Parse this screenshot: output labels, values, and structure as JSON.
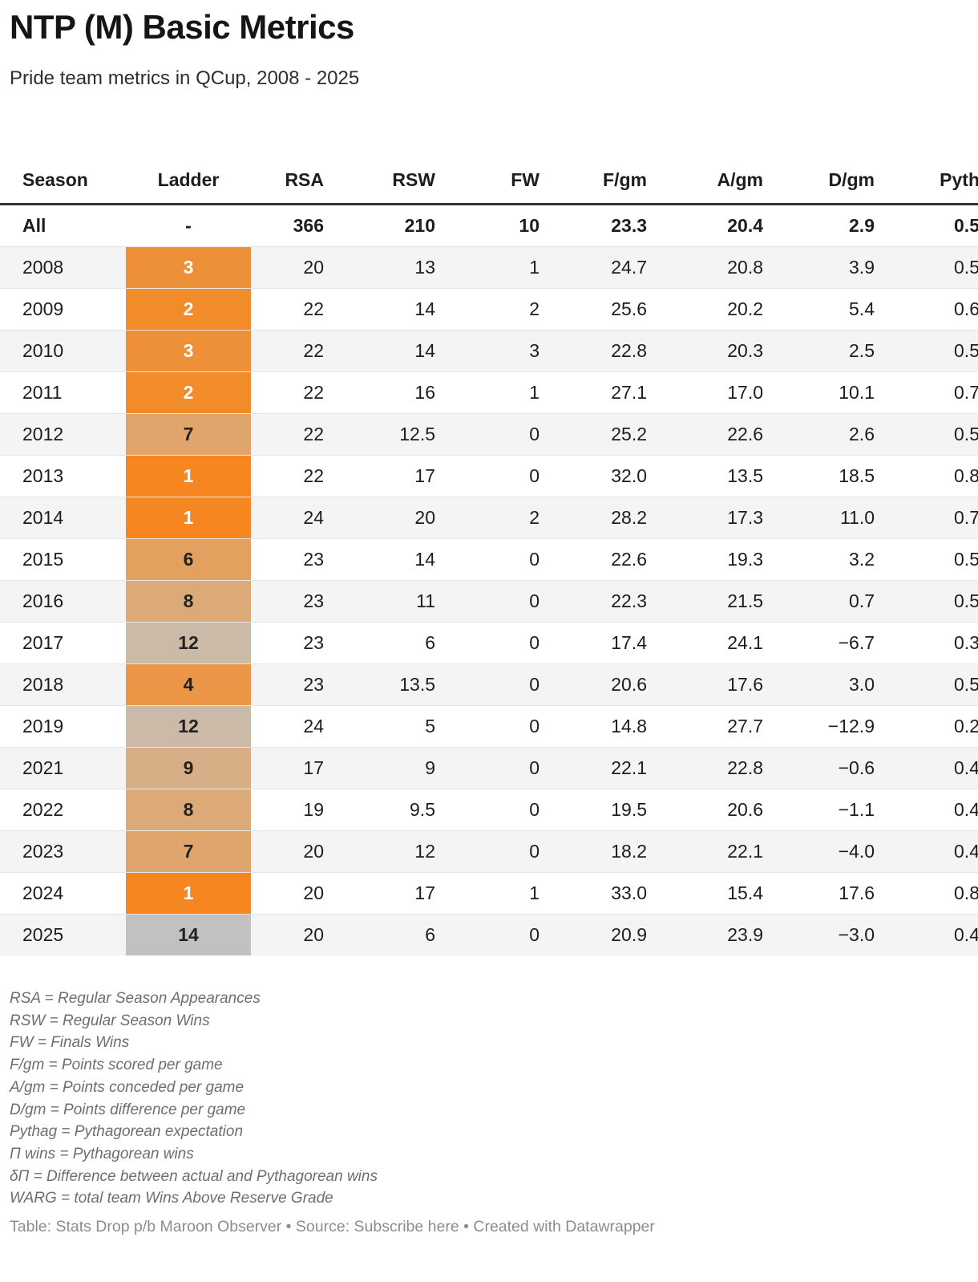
{
  "header": {
    "title": "NTP (M) Basic Metrics",
    "subtitle": "Pride team metrics in QCup, 2008 - 2025"
  },
  "table": {
    "columns": [
      {
        "label": "Season"
      },
      {
        "label": "Ladder"
      },
      {
        "label": "RSA"
      },
      {
        "label": "RSW"
      },
      {
        "label": "FW"
      },
      {
        "label": "F/gm"
      },
      {
        "label": "A/gm"
      },
      {
        "label": "D/gm"
      },
      {
        "label": "Pyth"
      }
    ],
    "total_row": {
      "season": "All",
      "ladder": "-",
      "values": [
        "366",
        "210",
        "10",
        "23.3",
        "20.4",
        "2.9",
        "0.5"
      ]
    },
    "rows": [
      {
        "season": "2008",
        "ladder": "3",
        "ladder_bg": "#ee9038",
        "ladder_text": "#ffffff",
        "values": [
          "20",
          "13",
          "1",
          "24.7",
          "20.8",
          "3.9",
          "0.5"
        ]
      },
      {
        "season": "2009",
        "ladder": "2",
        "ladder_bg": "#f28b2a",
        "ladder_text": "#ffffff",
        "values": [
          "22",
          "14",
          "2",
          "25.6",
          "20.2",
          "5.4",
          "0.6"
        ]
      },
      {
        "season": "2010",
        "ladder": "3",
        "ladder_bg": "#ee9038",
        "ladder_text": "#ffffff",
        "values": [
          "22",
          "14",
          "3",
          "22.8",
          "20.3",
          "2.5",
          "0.5"
        ]
      },
      {
        "season": "2011",
        "ladder": "2",
        "ladder_bg": "#f28b2a",
        "ladder_text": "#ffffff",
        "values": [
          "22",
          "16",
          "1",
          "27.1",
          "17.0",
          "10.1",
          "0.7"
        ]
      },
      {
        "season": "2012",
        "ladder": "7",
        "ladder_bg": "#e0a56c",
        "ladder_text": "#222222",
        "values": [
          "22",
          "12.5",
          "0",
          "25.2",
          "22.6",
          "2.6",
          "0.5"
        ]
      },
      {
        "season": "2013",
        "ladder": "1",
        "ladder_bg": "#f6861f",
        "ladder_text": "#ffffff",
        "values": [
          "22",
          "17",
          "0",
          "32.0",
          "13.5",
          "18.5",
          "0.8"
        ]
      },
      {
        "season": "2014",
        "ladder": "1",
        "ladder_bg": "#f6861f",
        "ladder_text": "#ffffff",
        "values": [
          "24",
          "20",
          "2",
          "28.2",
          "17.3",
          "11.0",
          "0.7"
        ]
      },
      {
        "season": "2015",
        "ladder": "6",
        "ladder_bg": "#e4a05f",
        "ladder_text": "#222222",
        "values": [
          "23",
          "14",
          "0",
          "22.6",
          "19.3",
          "3.2",
          "0.5"
        ]
      },
      {
        "season": "2016",
        "ladder": "8",
        "ladder_bg": "#dcaa79",
        "ladder_text": "#222222",
        "values": [
          "23",
          "11",
          "0",
          "22.3",
          "21.5",
          "0.7",
          "0.5"
        ]
      },
      {
        "season": "2017",
        "ladder": "12",
        "ladder_bg": "#ccbaa9",
        "ladder_text": "#222222",
        "values": [
          "23",
          "6",
          "0",
          "17.4",
          "24.1",
          "−6.7",
          "0.3"
        ]
      },
      {
        "season": "2018",
        "ladder": "4",
        "ladder_bg": "#eb9646",
        "ladder_text": "#222222",
        "values": [
          "23",
          "13.5",
          "0",
          "20.6",
          "17.6",
          "3.0",
          "0.5"
        ]
      },
      {
        "season": "2019",
        "ladder": "12",
        "ladder_bg": "#ccbaa9",
        "ladder_text": "#222222",
        "values": [
          "24",
          "5",
          "0",
          "14.8",
          "27.7",
          "−12.9",
          "0.2"
        ]
      },
      {
        "season": "2021",
        "ladder": "9",
        "ladder_bg": "#d7ae86",
        "ladder_text": "#222222",
        "values": [
          "17",
          "9",
          "0",
          "22.1",
          "22.8",
          "−0.6",
          "0.4"
        ]
      },
      {
        "season": "2022",
        "ladder": "8",
        "ladder_bg": "#dcaa79",
        "ladder_text": "#222222",
        "values": [
          "19",
          "9.5",
          "0",
          "19.5",
          "20.6",
          "−1.1",
          "0.4"
        ]
      },
      {
        "season": "2023",
        "ladder": "7",
        "ladder_bg": "#e0a56c",
        "ladder_text": "#222222",
        "values": [
          "20",
          "12",
          "0",
          "18.2",
          "22.1",
          "−4.0",
          "0.4"
        ]
      },
      {
        "season": "2024",
        "ladder": "1",
        "ladder_bg": "#f6861f",
        "ladder_text": "#ffffff",
        "values": [
          "20",
          "17",
          "1",
          "33.0",
          "15.4",
          "17.6",
          "0.8"
        ]
      },
      {
        "season": "2025",
        "ladder": "14",
        "ladder_bg": "#c3c1bf",
        "ladder_text": "#222222",
        "values": [
          "20",
          "6",
          "0",
          "20.9",
          "23.9",
          "−3.0",
          "0.4"
        ]
      }
    ]
  },
  "chart_data": {
    "type": "table",
    "title": "NTP (M) Basic Metrics",
    "subtitle": "Pride team metrics in QCup, 2008 - 2025",
    "columns": [
      "Season",
      "Ladder",
      "RSA",
      "RSW",
      "FW",
      "F/gm",
      "A/gm",
      "D/gm",
      "Pyth"
    ],
    "rows": [
      [
        "All",
        "-",
        "366",
        "210",
        "10",
        "23.3",
        "20.4",
        "2.9",
        "0.5"
      ],
      [
        "2008",
        "3",
        "20",
        "13",
        "1",
        "24.7",
        "20.8",
        "3.9",
        "0.5"
      ],
      [
        "2009",
        "2",
        "22",
        "14",
        "2",
        "25.6",
        "20.2",
        "5.4",
        "0.6"
      ],
      [
        "2010",
        "3",
        "22",
        "14",
        "3",
        "22.8",
        "20.3",
        "2.5",
        "0.5"
      ],
      [
        "2011",
        "2",
        "22",
        "16",
        "1",
        "27.1",
        "17.0",
        "10.1",
        "0.7"
      ],
      [
        "2012",
        "7",
        "22",
        "12.5",
        "0",
        "25.2",
        "22.6",
        "2.6",
        "0.5"
      ],
      [
        "2013",
        "1",
        "22",
        "17",
        "0",
        "32.0",
        "13.5",
        "18.5",
        "0.8"
      ],
      [
        "2014",
        "1",
        "24",
        "20",
        "2",
        "28.2",
        "17.3",
        "11.0",
        "0.7"
      ],
      [
        "2015",
        "6",
        "23",
        "14",
        "0",
        "22.6",
        "19.3",
        "3.2",
        "0.5"
      ],
      [
        "2016",
        "8",
        "23",
        "11",
        "0",
        "22.3",
        "21.5",
        "0.7",
        "0.5"
      ],
      [
        "2017",
        "12",
        "23",
        "6",
        "0",
        "17.4",
        "24.1",
        "−6.7",
        "0.3"
      ],
      [
        "2018",
        "4",
        "23",
        "13.5",
        "0",
        "20.6",
        "17.6",
        "3.0",
        "0.5"
      ],
      [
        "2019",
        "12",
        "24",
        "5",
        "0",
        "14.8",
        "27.7",
        "−12.9",
        "0.2"
      ],
      [
        "2021",
        "9",
        "17",
        "9",
        "0",
        "22.1",
        "22.8",
        "−0.6",
        "0.4"
      ],
      [
        "2022",
        "8",
        "19",
        "9.5",
        "0",
        "19.5",
        "20.6",
        "−1.1",
        "0.4"
      ],
      [
        "2023",
        "7",
        "20",
        "12",
        "0",
        "18.2",
        "22.1",
        "−4.0",
        "0.4"
      ],
      [
        "2024",
        "1",
        "20",
        "17",
        "1",
        "33.0",
        "15.4",
        "17.6",
        "0.8"
      ],
      [
        "2025",
        "14",
        "20",
        "6",
        "0",
        "20.9",
        "23.9",
        "−3.0",
        "0.4"
      ]
    ],
    "ladder_color_scale": {
      "rank_1": "#f6861f",
      "rank_14": "#c3c1bf"
    }
  },
  "footnotes": [
    "RSA = Regular Season Appearances",
    "RSW = Regular Season Wins",
    "FW = Finals Wins",
    "F/gm = Points scored per game",
    "A/gm = Points conceded per game",
    "D/gm = Points difference per game",
    "Pythag = Pythagorean expectation",
    "Π wins = Pythagorean wins",
    "δΠ = Difference between actual and Pythagorean wins",
    "WARG = total team Wins Above Reserve Grade"
  ],
  "footer": {
    "text_before": "Table: Stats Drop p/b Maroon Observer • Source: ",
    "link": "Subscribe here",
    "text_after": " • Created with Datawrapper"
  },
  "colors": {
    "stripe": "#f4f4f4",
    "header_rule": "#333333"
  }
}
